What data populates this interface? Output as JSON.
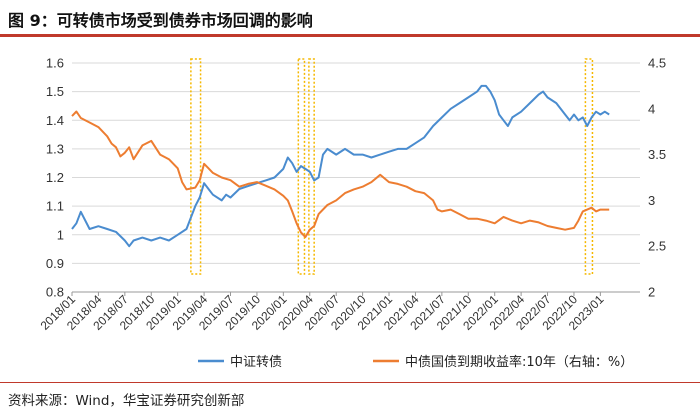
{
  "title": "图 9：可转债市场受到债券市场回调的影响",
  "source": "资料来源：Wind，华宝证券研究创新部",
  "chart_data": {
    "type": "line",
    "left_axis": {
      "min": 0.8,
      "max": 1.6,
      "ticks": [
        "0.8",
        "0.9",
        "1",
        "1.1",
        "1.2",
        "1.3",
        "1.4",
        "1.5",
        "1.6"
      ]
    },
    "right_axis": {
      "min": 2,
      "max": 4.5,
      "ticks": [
        "2",
        "2.5",
        "3",
        "3.5",
        "4",
        "4.5"
      ]
    },
    "x_ticks": [
      "2018/01",
      "2018/04",
      "2018/07",
      "2018/10",
      "2019/01",
      "2019/04",
      "2019/07",
      "2019/10",
      "2020/01",
      "2020/04",
      "2020/07",
      "2020/10",
      "2021/01",
      "2021/04",
      "2021/07",
      "2021/10",
      "2022/01",
      "2022/04",
      "2022/07",
      "2022/10",
      "2023/01"
    ],
    "x_range": [
      0,
      64.5
    ],
    "grid": "horizontal",
    "series": [
      {
        "name": "中证转债",
        "axis": "left",
        "color": "#4a8ccf",
        "points": [
          [
            0,
            1.02
          ],
          [
            0.5,
            1.04
          ],
          [
            1,
            1.08
          ],
          [
            2,
            1.02
          ],
          [
            3,
            1.03
          ],
          [
            4,
            1.02
          ],
          [
            5,
            1.01
          ],
          [
            6,
            0.98
          ],
          [
            6.5,
            0.96
          ],
          [
            7,
            0.98
          ],
          [
            8,
            0.99
          ],
          [
            9,
            0.98
          ],
          [
            10,
            0.99
          ],
          [
            11,
            0.98
          ],
          [
            12,
            1.0
          ],
          [
            13,
            1.02
          ],
          [
            14,
            1.1
          ],
          [
            14.5,
            1.13
          ],
          [
            15,
            1.18
          ],
          [
            15.5,
            1.16
          ],
          [
            16,
            1.14
          ],
          [
            17,
            1.12
          ],
          [
            17.5,
            1.14
          ],
          [
            18,
            1.13
          ],
          [
            19,
            1.16
          ],
          [
            20,
            1.17
          ],
          [
            21,
            1.18
          ],
          [
            22,
            1.19
          ],
          [
            23,
            1.2
          ],
          [
            24,
            1.23
          ],
          [
            24.5,
            1.27
          ],
          [
            25,
            1.25
          ],
          [
            25.5,
            1.22
          ],
          [
            26,
            1.24
          ],
          [
            26.5,
            1.23
          ],
          [
            27,
            1.22
          ],
          [
            27.5,
            1.19
          ],
          [
            28,
            1.2
          ],
          [
            28.5,
            1.28
          ],
          [
            29,
            1.3
          ],
          [
            30,
            1.28
          ],
          [
            31,
            1.3
          ],
          [
            32,
            1.28
          ],
          [
            33,
            1.28
          ],
          [
            34,
            1.27
          ],
          [
            35,
            1.28
          ],
          [
            36,
            1.29
          ],
          [
            37,
            1.3
          ],
          [
            38,
            1.3
          ],
          [
            39,
            1.32
          ],
          [
            40,
            1.34
          ],
          [
            41,
            1.38
          ],
          [
            42,
            1.41
          ],
          [
            43,
            1.44
          ],
          [
            44,
            1.46
          ],
          [
            45,
            1.48
          ],
          [
            46,
            1.5
          ],
          [
            46.5,
            1.52
          ],
          [
            47,
            1.52
          ],
          [
            47.5,
            1.5
          ],
          [
            48,
            1.47
          ],
          [
            48.5,
            1.42
          ],
          [
            49,
            1.4
          ],
          [
            49.5,
            1.38
          ],
          [
            50,
            1.41
          ],
          [
            51,
            1.43
          ],
          [
            52,
            1.46
          ],
          [
            53,
            1.49
          ],
          [
            53.5,
            1.5
          ],
          [
            54,
            1.48
          ],
          [
            55,
            1.46
          ],
          [
            56,
            1.42
          ],
          [
            56.5,
            1.4
          ],
          [
            57,
            1.42
          ],
          [
            57.5,
            1.4
          ],
          [
            58,
            1.41
          ],
          [
            58.5,
            1.38
          ],
          [
            59,
            1.41
          ],
          [
            59.5,
            1.43
          ],
          [
            60,
            1.42
          ],
          [
            60.5,
            1.43
          ],
          [
            61,
            1.42
          ]
        ]
      },
      {
        "name": "中债国债到期收益率:10年（右轴：%）",
        "axis": "right",
        "color": "#ed7d31",
        "points": [
          [
            0,
            3.92
          ],
          [
            0.5,
            3.97
          ],
          [
            1,
            3.9
          ],
          [
            2,
            3.85
          ],
          [
            3,
            3.8
          ],
          [
            4,
            3.7
          ],
          [
            4.5,
            3.62
          ],
          [
            5,
            3.58
          ],
          [
            5.5,
            3.48
          ],
          [
            6,
            3.52
          ],
          [
            6.5,
            3.58
          ],
          [
            7,
            3.45
          ],
          [
            8,
            3.6
          ],
          [
            9,
            3.65
          ],
          [
            10,
            3.5
          ],
          [
            11,
            3.45
          ],
          [
            12,
            3.35
          ],
          [
            12.5,
            3.2
          ],
          [
            13,
            3.12
          ],
          [
            14,
            3.14
          ],
          [
            14.5,
            3.22
          ],
          [
            15,
            3.4
          ],
          [
            15.5,
            3.35
          ],
          [
            16,
            3.3
          ],
          [
            17,
            3.25
          ],
          [
            18,
            3.22
          ],
          [
            19,
            3.15
          ],
          [
            20,
            3.18
          ],
          [
            21,
            3.2
          ],
          [
            22,
            3.16
          ],
          [
            23,
            3.12
          ],
          [
            24,
            3.05
          ],
          [
            24.5,
            3.0
          ],
          [
            25,
            2.88
          ],
          [
            25.5,
            2.75
          ],
          [
            26,
            2.65
          ],
          [
            26.5,
            2.6
          ],
          [
            27,
            2.68
          ],
          [
            27.5,
            2.72
          ],
          [
            28,
            2.85
          ],
          [
            29,
            2.95
          ],
          [
            30,
            3.0
          ],
          [
            31,
            3.08
          ],
          [
            32,
            3.12
          ],
          [
            33,
            3.15
          ],
          [
            34,
            3.2
          ],
          [
            35,
            3.28
          ],
          [
            36,
            3.2
          ],
          [
            37,
            3.18
          ],
          [
            38,
            3.15
          ],
          [
            39,
            3.1
          ],
          [
            40,
            3.08
          ],
          [
            41,
            3.0
          ],
          [
            41.5,
            2.9
          ],
          [
            42,
            2.88
          ],
          [
            43,
            2.9
          ],
          [
            44,
            2.85
          ],
          [
            45,
            2.8
          ],
          [
            46,
            2.8
          ],
          [
            47,
            2.78
          ],
          [
            48,
            2.75
          ],
          [
            49,
            2.82
          ],
          [
            50,
            2.78
          ],
          [
            51,
            2.75
          ],
          [
            52,
            2.78
          ],
          [
            53,
            2.76
          ],
          [
            54,
            2.72
          ],
          [
            55,
            2.7
          ],
          [
            56,
            2.68
          ],
          [
            57,
            2.7
          ],
          [
            57.5,
            2.78
          ],
          [
            58,
            2.88
          ],
          [
            59,
            2.92
          ],
          [
            59.5,
            2.88
          ],
          [
            60,
            2.9
          ],
          [
            61,
            2.9
          ]
        ]
      }
    ],
    "highlight_boxes": [
      [
        13.5,
        14.6
      ],
      [
        25.7,
        26.4
      ],
      [
        26.9,
        27.5
      ],
      [
        58.3,
        59.1
      ]
    ],
    "legend_position": "bottom"
  }
}
